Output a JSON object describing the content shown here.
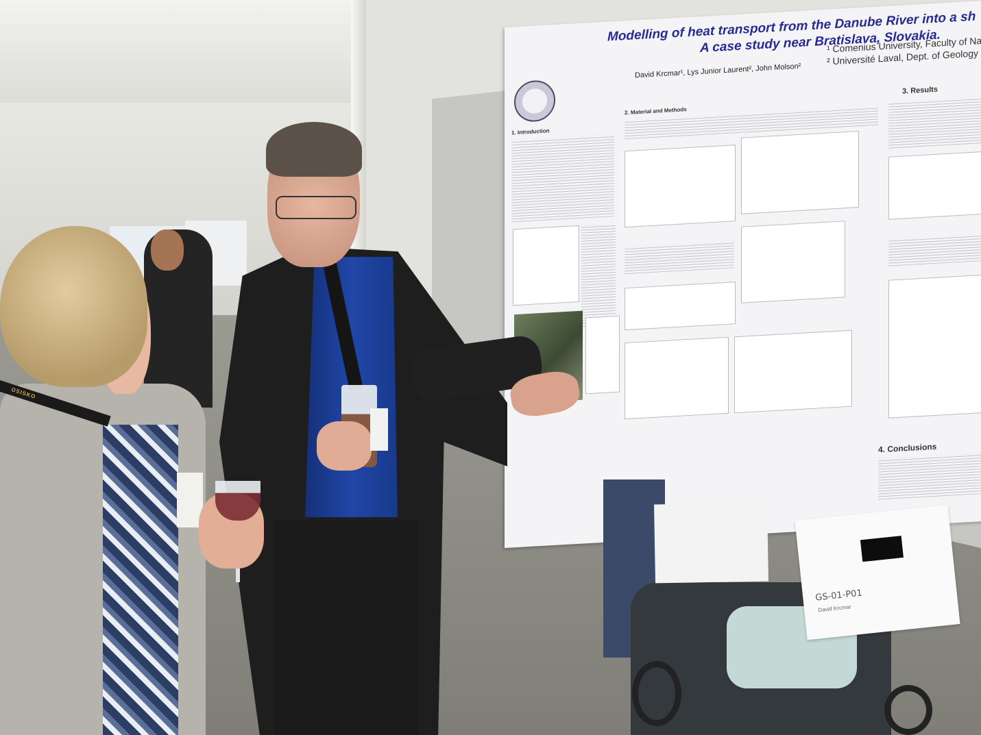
{
  "poster": {
    "title": "Modelling of heat transport from the Danube River into a sh",
    "subtitle": "A case study near Bratislava, Slovakia.",
    "authors": "David Krcmar¹, Lys Junior Laurent², John Molson²",
    "affiliation_1": "¹ Comenius University, Faculty of Na",
    "affiliation_2": "² Université Laval, Dept. of Geology",
    "sections": {
      "introduction": "1. Introduction",
      "methods": "2. Material and Methods",
      "results": "3. Results",
      "conclusions": "4. Conclusions"
    }
  },
  "sign": {
    "code": "GS-01-P01",
    "name": "David Krcmar"
  },
  "lanyard_text": "OSISKO",
  "colors": {
    "poster_title": "#272a8f",
    "shirt": "#2146a7",
    "jacket": "#1e1e1e"
  }
}
